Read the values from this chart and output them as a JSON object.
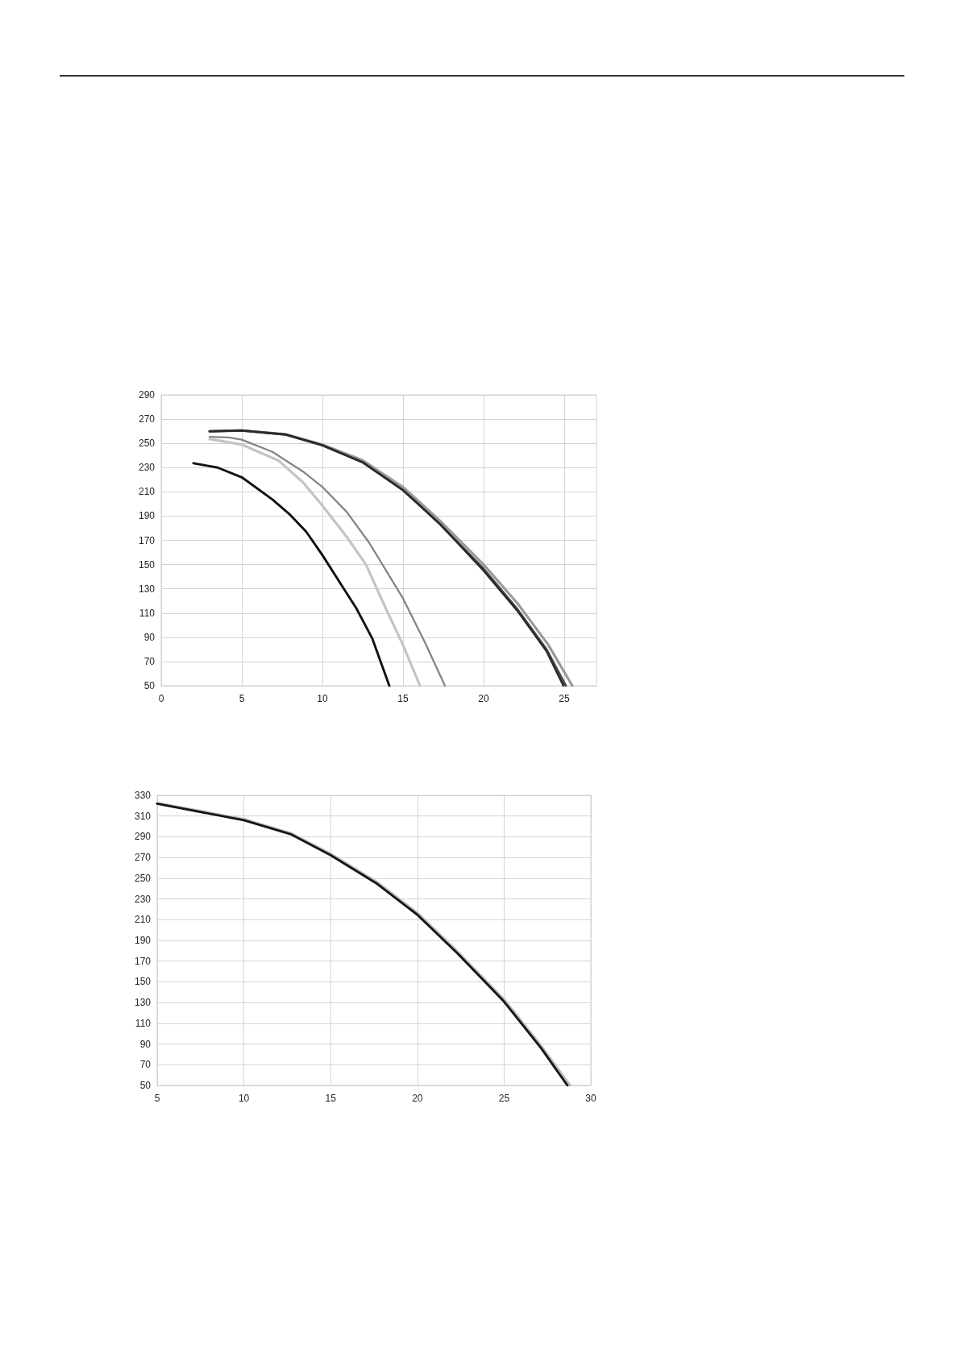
{
  "chart_data": [
    {
      "type": "line",
      "xlim": [
        0,
        27
      ],
      "xticks": [
        0,
        5,
        10,
        15,
        20,
        25
      ],
      "ylim": [
        50,
        290
      ],
      "yticks": [
        50,
        70,
        90,
        110,
        130,
        150,
        170,
        190,
        210,
        230,
        250,
        270,
        290
      ],
      "grid": true,
      "marker": "none",
      "line_style": "solid",
      "series": [
        {
          "color": "#9a9a9a",
          "x": [
            3,
            5,
            7.7,
            10,
            12.5,
            15,
            17.3,
            20,
            22.1,
            24,
            25.5
          ],
          "values": [
            259.9,
            260.6,
            257.5,
            249,
            236,
            213.9,
            186,
            150,
            118,
            84,
            50
          ]
        },
        {
          "color": "#4a4a4a",
          "x": [
            3,
            5,
            7.7,
            10,
            12.5,
            15,
            17.3,
            20,
            22.1,
            23.9,
            25.1
          ],
          "values": [
            259.9,
            260.6,
            257.3,
            248.4,
            234.3,
            211.4,
            183.3,
            146.5,
            113,
            80,
            50
          ]
        },
        {
          "color": "#2a2a2a",
          "x": [
            3,
            5,
            7.7,
            10,
            12.5,
            15,
            17.3,
            20,
            22.1,
            23.9,
            24.95
          ],
          "values": [
            259.9,
            260.6,
            257.3,
            248.4,
            234.3,
            211.4,
            183.3,
            145,
            111.8,
            78.6,
            50
          ]
        },
        {
          "color": "#858585",
          "x": [
            3,
            4.2,
            5,
            6.9,
            8.8,
            10,
            11.5,
            12.9,
            15,
            16.35,
            17.6
          ],
          "values": [
            255.3,
            254.8,
            253,
            243,
            226.7,
            214,
            193.5,
            168,
            122,
            86,
            50
          ]
        },
        {
          "color": "#c4c4c4",
          "x": [
            3,
            5,
            7.3,
            8.8,
            10,
            11.5,
            12.7,
            14,
            15,
            16.05
          ],
          "values": [
            253.5,
            249,
            235.6,
            217.7,
            198.6,
            173,
            150,
            111.8,
            83.7,
            50
          ]
        },
        {
          "color": "#111111",
          "x": [
            2,
            3.5,
            5,
            6.9,
            8,
            9,
            10,
            11.1,
            12.1,
            13.1,
            14.15
          ],
          "values": [
            233.6,
            230,
            222,
            203.7,
            191,
            177,
            157.8,
            134.8,
            114,
            88.8,
            50
          ]
        }
      ]
    },
    {
      "type": "line",
      "xlim": [
        5,
        30
      ],
      "xticks": [
        5,
        10,
        15,
        20,
        25,
        30
      ],
      "ylim": [
        50,
        330
      ],
      "yticks": [
        50,
        70,
        90,
        110,
        130,
        150,
        170,
        190,
        210,
        230,
        250,
        270,
        290,
        310,
        330
      ],
      "grid": true,
      "marker": "none",
      "line_style": "solid",
      "series": [
        {
          "color": "#bdbdbd",
          "x": [
            5,
            10,
            12.7,
            15,
            17.7,
            20,
            22.3,
            25,
            27.1,
            28.8
          ],
          "values": [
            322.5,
            307,
            293.5,
            273.5,
            246,
            216.5,
            179.5,
            133,
            89,
            50
          ]
        },
        {
          "color": "#151515",
          "x": [
            5,
            10,
            12.68,
            15,
            17.68,
            20,
            22.32,
            25,
            27.14,
            28.65
          ],
          "values": [
            321.9,
            306,
            292.6,
            272.2,
            244.6,
            214.7,
            177.3,
            130.8,
            85.9,
            50
          ]
        }
      ]
    }
  ]
}
